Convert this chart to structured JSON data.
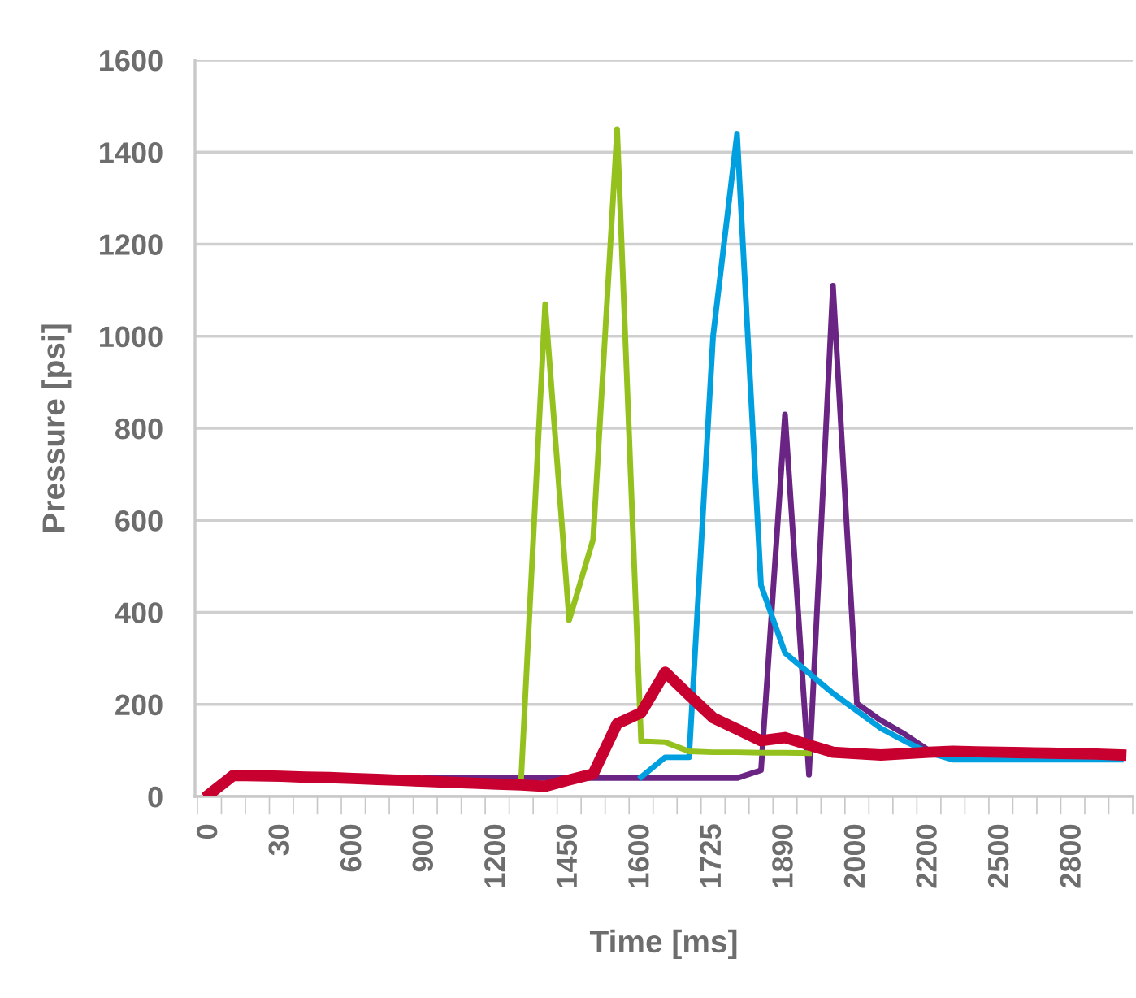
{
  "chart_data": {
    "type": "line",
    "xlabel": "Time [ms]",
    "ylabel": "Pressure [psi]",
    "categories": [
      "0",
      null,
      null,
      "30",
      null,
      null,
      "600",
      null,
      null,
      "900",
      null,
      null,
      "1200",
      null,
      null,
      "1450",
      null,
      null,
      "1600",
      null,
      null,
      "1725",
      null,
      null,
      "1890",
      null,
      null,
      "2000",
      null,
      null,
      "2200",
      null,
      null,
      "2500",
      null,
      null,
      "2800",
      null,
      null
    ],
    "series": [
      {
        "color": "#6a2483",
        "values": [
          null,
          null,
          null,
          null,
          null,
          null,
          null,
          null,
          null,
          40,
          40,
          40,
          40,
          40,
          40,
          40,
          40,
          40,
          40,
          40,
          40,
          40,
          40,
          57,
          830,
          47,
          1110,
          202,
          165,
          135,
          100,
          null,
          null,
          null,
          null,
          null,
          null,
          null,
          null
        ]
      },
      {
        "color": "#00a0e0",
        "values": [
          null,
          null,
          null,
          null,
          null,
          null,
          null,
          null,
          null,
          null,
          null,
          null,
          null,
          null,
          null,
          null,
          null,
          null,
          42,
          85,
          85,
          1000,
          1440,
          459,
          312,
          268,
          224,
          186,
          148,
          120,
          95,
          80,
          80,
          80,
          80,
          80,
          80,
          80,
          80
        ]
      },
      {
        "color": "#95c11f",
        "values": [
          null,
          null,
          null,
          null,
          null,
          null,
          null,
          null,
          null,
          null,
          null,
          null,
          null,
          40,
          1070,
          383,
          559,
          1450,
          120,
          118,
          98,
          96,
          96,
          95,
          95,
          94,
          null,
          null,
          null,
          null,
          null,
          null,
          null,
          null,
          null,
          null,
          null,
          null,
          null
        ]
      },
      {
        "color": "#c8002f",
        "values": [
          5,
          46,
          45,
          44,
          42,
          41,
          39,
          37,
          35,
          33,
          31,
          29,
          27,
          25,
          22,
          36,
          49,
          158,
          182,
          270,
          220,
          171,
          146,
          121,
          128,
          112,
          96,
          93,
          90,
          93,
          96,
          98,
          97,
          96,
          95,
          94,
          93,
          92,
          90
        ]
      }
    ],
    "ylim": [
      0,
      1600
    ],
    "yticks": [
      0,
      200,
      400,
      600,
      800,
      1000,
      1200,
      1400,
      1600
    ],
    "grid": "y"
  }
}
